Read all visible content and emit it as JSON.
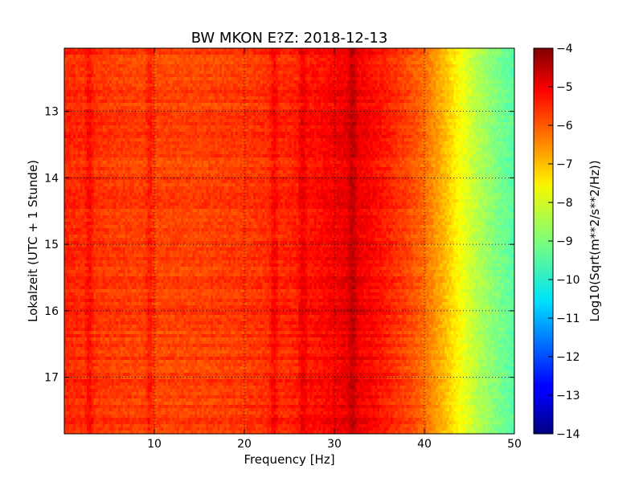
{
  "chart_data": {
    "type": "heatmap",
    "title": "BW MKON E?Z: 2018-12-13",
    "xlabel": "Frequency [Hz]",
    "ylabel": "Lokalzeit (UTC + 1 Stunde)",
    "xlim": [
      0,
      50
    ],
    "ylim": [
      12.05,
      17.85
    ],
    "y_inverted": true,
    "x_ticks": [
      10,
      20,
      30,
      40,
      50
    ],
    "y_ticks": [
      13,
      14,
      15,
      16,
      17
    ],
    "grid": true,
    "colormap": "jet",
    "colorbar": {
      "label": "Log10(Sqrt(m**2/s**2/Hz))",
      "range": [
        -14,
        -4
      ],
      "ticks": [
        -4,
        -5,
        -6,
        -7,
        -8,
        -9,
        -10,
        -11,
        -12,
        -13,
        -14
      ],
      "tick_labels": [
        "−4",
        "−5",
        "−6",
        "−7",
        "−8",
        "−9",
        "−10",
        "−11",
        "−12",
        "−13",
        "−14"
      ]
    },
    "spectrum_profile": {
      "frequency_hz": [
        0,
        5,
        10,
        15,
        20,
        25,
        30,
        32,
        35,
        38,
        40,
        42,
        44,
        46,
        48,
        50
      ],
      "log10_level": [
        -5.6,
        -5.8,
        -5.9,
        -5.9,
        -5.8,
        -5.6,
        -5.2,
        -5.0,
        -5.4,
        -5.9,
        -6.3,
        -7.0,
        -7.8,
        -8.5,
        -9.0,
        -9.4
      ]
    },
    "strong_lines_hz": [
      2.8,
      9.5,
      23.3,
      26.5,
      32.0
    ]
  }
}
